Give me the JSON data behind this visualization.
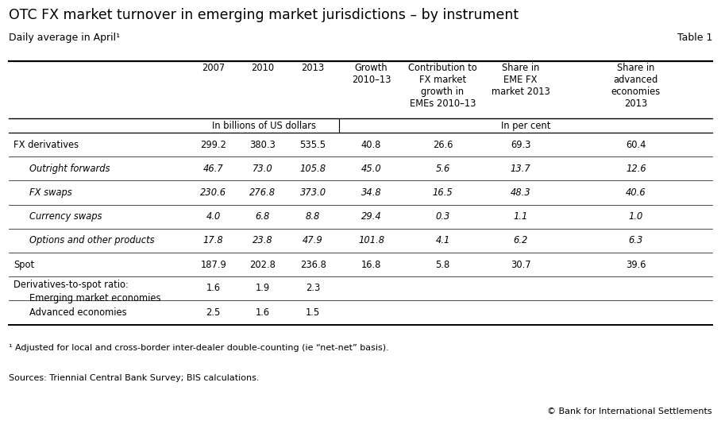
{
  "title": "OTC FX market turnover in emerging market jurisdictions – by instrument",
  "subtitle": "Daily average in April¹",
  "table_label": "Table 1",
  "col_headers": [
    "",
    "2007",
    "2010",
    "2013",
    "Growth\n2010–13",
    "Contribution to\nFX market\ngrowth in\nEMEs 2010–13",
    "Share in\nEME FX\nmarket 2013",
    "Share in\nadvanced\neconomies\n2013"
  ],
  "subheader_left": "In billions of US dollars",
  "subheader_right": "In per cent",
  "rows": [
    {
      "label": "FX derivatives",
      "italic": false,
      "indent": 0,
      "values": [
        "299.2",
        "380.3",
        "535.5",
        "40.8",
        "26.6",
        "69.3",
        "60.4"
      ]
    },
    {
      "label": "Outright forwards",
      "italic": true,
      "indent": 1,
      "values": [
        "46.7",
        "73.0",
        "105.8",
        "45.0",
        "5.6",
        "13.7",
        "12.6"
      ]
    },
    {
      "label": "FX swaps",
      "italic": true,
      "indent": 1,
      "values": [
        "230.6",
        "276.8",
        "373.0",
        "34.8",
        "16.5",
        "48.3",
        "40.6"
      ]
    },
    {
      "label": "Currency swaps",
      "italic": true,
      "indent": 1,
      "values": [
        "4.0",
        "6.8",
        "8.8",
        "29.4",
        "0.3",
        "1.1",
        "1.0"
      ]
    },
    {
      "label": "Options and other products",
      "italic": true,
      "indent": 1,
      "values": [
        "17.8",
        "23.8",
        "47.9",
        "101.8",
        "4.1",
        "6.2",
        "6.3"
      ]
    },
    {
      "label": "Spot",
      "italic": false,
      "indent": 0,
      "values": [
        "187.9",
        "202.8",
        "236.8",
        "16.8",
        "5.8",
        "30.7",
        "39.6"
      ]
    },
    {
      "label": "Derivatives-to-spot ratio:",
      "italic": false,
      "indent": 0,
      "values": [
        "",
        "",
        "",
        "",
        "",
        "",
        ""
      ],
      "subrow": "Emerging market economies",
      "subvalues": [
        "1.6",
        "1.9",
        "2.3",
        "",
        "",
        "",
        ""
      ]
    },
    {
      "label": "Advanced economies",
      "italic": false,
      "indent": 1,
      "values": [
        "2.5",
        "1.6",
        "1.5",
        "",
        "",
        "",
        ""
      ]
    }
  ],
  "footnote": "¹ Adjusted for local and cross-border inter-dealer double-counting (ie “net-net” basis).",
  "sources": "Sources: Triennial Central Bank Survey; BIS calculations.",
  "copyright": "© Bank for International Settlements",
  "bg_color": "#ffffff",
  "text_color": "#000000"
}
